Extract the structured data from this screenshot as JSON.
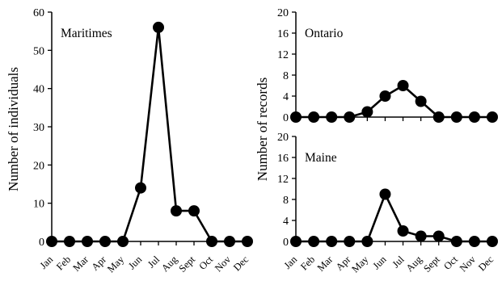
{
  "chart_data": [
    {
      "type": "line",
      "panel_label": "Maritimes",
      "ylabel": "Number of individuals",
      "ylim": [
        0,
        60
      ],
      "yticks": [
        "0",
        "10",
        "20",
        "30",
        "40",
        "50",
        "60"
      ],
      "categories": [
        "Jan",
        "Feb",
        "Mar",
        "Apr",
        "May",
        "Jun",
        "Jul",
        "Aug",
        "Sept",
        "Oct",
        "Nov",
        "Dec"
      ],
      "values": [
        0,
        0,
        0,
        0,
        0,
        14,
        56,
        8,
        8,
        0,
        0,
        0
      ],
      "grid": false,
      "marker": "filled-circle"
    },
    {
      "type": "line",
      "panel_label": "Ontario",
      "ylim": [
        0,
        20
      ],
      "yticks": [
        "0",
        "4",
        "8",
        "12",
        "16",
        "20"
      ],
      "categories": [
        "Jan",
        "Feb",
        "Mar",
        "Apr",
        "May",
        "Jun",
        "Jul",
        "Aug",
        "Sept",
        "Oct",
        "Nov",
        "Dec"
      ],
      "values": [
        0,
        0,
        0,
        0,
        1,
        4,
        6,
        3,
        0,
        0,
        0,
        0
      ],
      "grid": false,
      "marker": "filled-circle"
    },
    {
      "type": "line",
      "panel_label": "Maine",
      "ylim": [
        0,
        20
      ],
      "yticks": [
        "0",
        "4",
        "8",
        "12",
        "16",
        "20"
      ],
      "categories": [
        "Jan",
        "Feb",
        "Mar",
        "Apr",
        "May",
        "Jun",
        "Jul",
        "Aug",
        "Sept",
        "Oct",
        "Nov",
        "Dec"
      ],
      "values": [
        0,
        0,
        0,
        0,
        0,
        9,
        2,
        1,
        1,
        0,
        0,
        0
      ],
      "grid": false,
      "marker": "filled-circle"
    }
  ],
  "shared_ylabel_right": "Number of records",
  "colors": {
    "line": "#000000",
    "marker": "#000000",
    "axis": "#000000",
    "background": "#ffffff"
  }
}
